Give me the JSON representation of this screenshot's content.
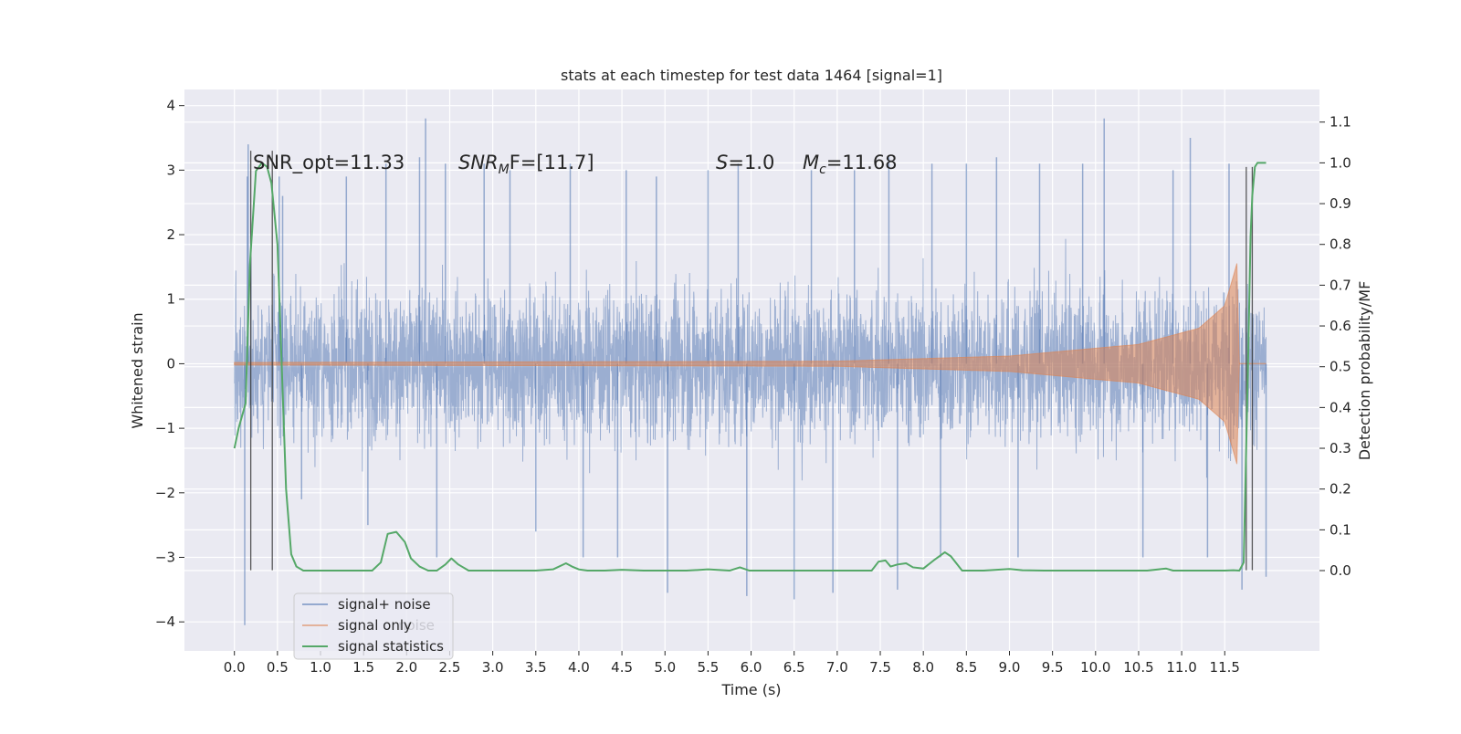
{
  "chart_data": {
    "type": "line",
    "title": "stats at each timestep for test data 1464 [signal=1]",
    "xlabel": "Time (s)",
    "ylabel_left": "Whitened strain",
    "ylabel_right": "Detection probability/MF",
    "x_ticks": [
      "0.0",
      "0.5",
      "1.0",
      "1.5",
      "2.0",
      "2.5",
      "3.0",
      "3.5",
      "4.0",
      "4.5",
      "5.0",
      "5.5",
      "6.0",
      "6.5",
      "7.0",
      "7.5",
      "8.0",
      "8.5",
      "9.0",
      "9.5",
      "10.0",
      "10.5",
      "11.0",
      "11.5"
    ],
    "y_left_ticks": [
      "4",
      "3",
      "2",
      "1",
      "0",
      "−1",
      "−2",
      "−3",
      "−4"
    ],
    "y_right_ticks": [
      "1.1",
      "1.0",
      "0.9",
      "0.8",
      "0.7",
      "0.6",
      "0.5",
      "0.4",
      "0.3",
      "0.2",
      "0.1",
      "0.0"
    ],
    "xlim": [
      -0.58,
      12.6
    ],
    "ylim_left": [
      -4.45,
      4.25
    ],
    "ylim_right": [
      -0.197,
      1.18
    ],
    "grid": true,
    "legend_position": "lower-left",
    "legend": {
      "items": [
        "signal+ noise",
        "signal only",
        "signal statistics"
      ],
      "hidden_text": "noise"
    },
    "annotations": {
      "snr_opt": "SNR_opt=11.33",
      "snr_mf_main": "SNR",
      "snr_mf_sub": "M",
      "snr_mf_rest": "F=[11.7]",
      "s_italic": "S",
      "s_value": "=1.0",
      "mc_main": "M",
      "mc_sub": "c",
      "mc_value": "=11.68"
    },
    "series": [
      {
        "name": "signal+ noise",
        "color": "#4c72b0",
        "axis": "left",
        "x_range": [
          0.0,
          11.98
        ],
        "peaks": [
          {
            "t": 0.12,
            "v": -4.05
          },
          {
            "t": 0.15,
            "v": 2.9
          },
          {
            "t": 0.16,
            "v": 3.4
          },
          {
            "t": 0.52,
            "v": 2.9
          },
          {
            "t": 0.56,
            "v": 2.6
          },
          {
            "t": 0.78,
            "v": -2.1
          },
          {
            "t": 1.3,
            "v": 2.9
          },
          {
            "t": 1.55,
            "v": -2.5
          },
          {
            "t": 1.76,
            "v": 3.1
          },
          {
            "t": 2.15,
            "v": 3.2
          },
          {
            "t": 2.22,
            "v": 3.8
          },
          {
            "t": 2.35,
            "v": -3.0
          },
          {
            "t": 2.45,
            "v": 3.1
          },
          {
            "t": 2.9,
            "v": 3.1
          },
          {
            "t": 3.2,
            "v": 3.0
          },
          {
            "t": 3.5,
            "v": -2.6
          },
          {
            "t": 3.9,
            "v": 3.1
          },
          {
            "t": 4.05,
            "v": -3.0
          },
          {
            "t": 4.45,
            "v": -3.0
          },
          {
            "t": 4.55,
            "v": 3.0
          },
          {
            "t": 4.9,
            "v": 2.9
          },
          {
            "t": 5.03,
            "v": -3.55
          },
          {
            "t": 5.5,
            "v": 3.0
          },
          {
            "t": 5.85,
            "v": 3.1
          },
          {
            "t": 5.95,
            "v": -3.6
          },
          {
            "t": 6.5,
            "v": -3.65
          },
          {
            "t": 6.7,
            "v": 3.0
          },
          {
            "t": 6.95,
            "v": -3.55
          },
          {
            "t": 7.2,
            "v": 3.0
          },
          {
            "t": 7.6,
            "v": 3.2
          },
          {
            "t": 7.7,
            "v": -3.5
          },
          {
            "t": 8.1,
            "v": 3.1
          },
          {
            "t": 8.2,
            "v": -3.0
          },
          {
            "t": 8.5,
            "v": 3.1
          },
          {
            "t": 8.85,
            "v": 3.2
          },
          {
            "t": 9.1,
            "v": -3.0
          },
          {
            "t": 9.35,
            "v": 3.1
          },
          {
            "t": 9.85,
            "v": 3.1
          },
          {
            "t": 10.1,
            "v": 3.8
          },
          {
            "t": 10.55,
            "v": -3.0
          },
          {
            "t": 10.9,
            "v": 3.0
          },
          {
            "t": 11.1,
            "v": 3.5
          },
          {
            "t": 11.3,
            "v": -3.0
          },
          {
            "t": 11.55,
            "v": 3.1
          },
          {
            "t": 11.7,
            "v": -3.5
          },
          {
            "t": 11.98,
            "v": -3.3
          }
        ]
      },
      {
        "name": "signal only",
        "color": "#dd8452",
        "axis": "left",
        "x_range": [
          0.0,
          11.98
        ],
        "envelope_points": [
          {
            "t": 0.0,
            "amp": 0.02
          },
          {
            "t": 7.0,
            "amp": 0.04
          },
          {
            "t": 9.0,
            "amp": 0.12
          },
          {
            "t": 10.5,
            "amp": 0.3
          },
          {
            "t": 11.2,
            "amp": 0.55
          },
          {
            "t": 11.5,
            "amp": 0.9
          },
          {
            "t": 11.62,
            "amp": 1.45
          },
          {
            "t": 11.65,
            "amp": 1.6
          },
          {
            "t": 11.67,
            "amp": 0.0
          }
        ]
      },
      {
        "name": "signal statistics",
        "color": "#55a868",
        "axis": "right",
        "x": [
          0.0,
          0.05,
          0.13,
          0.18,
          0.25,
          0.32,
          0.38,
          0.43,
          0.5,
          0.6,
          0.66,
          0.72,
          0.8,
          1.0,
          1.25,
          1.5,
          1.6,
          1.7,
          1.78,
          1.88,
          1.98,
          2.05,
          2.15,
          2.25,
          2.35,
          2.45,
          2.52,
          2.6,
          2.72,
          3.0,
          3.5,
          3.7,
          3.85,
          3.92,
          4.0,
          4.1,
          4.3,
          4.5,
          4.75,
          5.0,
          5.25,
          5.5,
          5.75,
          5.87,
          5.98,
          6.1,
          6.3,
          6.55,
          6.85,
          7.1,
          7.4,
          7.48,
          7.56,
          7.62,
          7.7,
          7.8,
          7.88,
          8.0,
          8.12,
          8.25,
          8.32,
          8.45,
          8.7,
          9.0,
          9.15,
          9.4,
          9.7,
          10.0,
          10.3,
          10.6,
          10.82,
          10.9,
          11.0,
          11.2,
          11.5,
          11.6,
          11.67,
          11.72,
          11.77,
          11.8,
          11.82,
          11.85,
          11.88,
          11.92,
          11.98
        ],
        "values": [
          0.3,
          0.35,
          0.41,
          0.75,
          0.98,
          1.0,
          0.99,
          0.95,
          0.8,
          0.2,
          0.04,
          0.01,
          0.0,
          0.0,
          0.0,
          0.0,
          0.0,
          0.02,
          0.09,
          0.095,
          0.07,
          0.03,
          0.01,
          0.0,
          0.0,
          0.015,
          0.03,
          0.015,
          0.0,
          0.0,
          0.0,
          0.003,
          0.018,
          0.01,
          0.003,
          0.0,
          0.0,
          0.002,
          0.0,
          0.0,
          0.0,
          0.003,
          0.0,
          0.008,
          0.0,
          0.0,
          0.0,
          0.0,
          0.0,
          0.0,
          0.0,
          0.022,
          0.025,
          0.01,
          0.015,
          0.018,
          0.008,
          0.005,
          0.025,
          0.045,
          0.035,
          0.0,
          0.0,
          0.004,
          0.001,
          0.0,
          0.0,
          0.0,
          0.0,
          0.0,
          0.005,
          0.0,
          0.0,
          0.0,
          0.0,
          0.001,
          0.0,
          0.02,
          0.5,
          0.82,
          0.92,
          0.99,
          1.0,
          1.0,
          1.0
        ]
      }
    ],
    "vertical_markers": [
      {
        "t": 0.19,
        "v_bottom": -3.2,
        "v_top": 3.3
      },
      {
        "t": 0.44,
        "v_bottom": -3.2,
        "v_top": 3.3
      },
      {
        "t": 11.75,
        "v_bottom": -3.2,
        "v_top": 3.05
      },
      {
        "t": 11.82,
        "v_bottom": -3.2,
        "v_top": 3.05
      }
    ]
  }
}
